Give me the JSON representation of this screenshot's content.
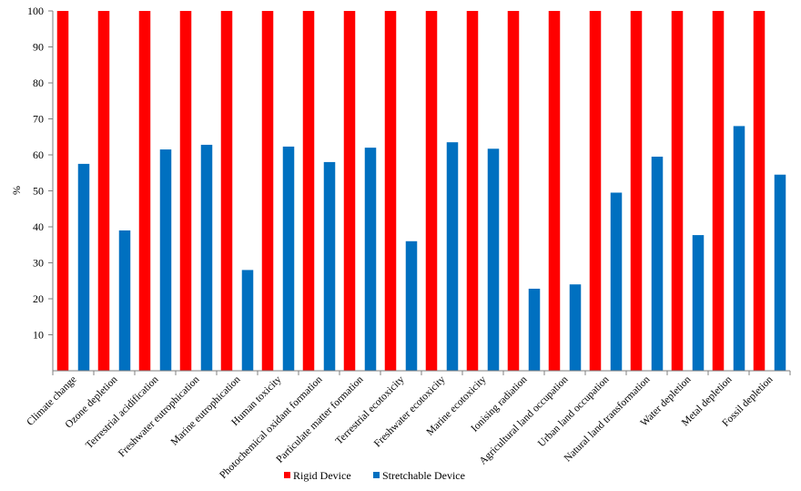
{
  "chart_data": {
    "type": "bar",
    "title": "",
    "xlabel": "",
    "ylabel": "%",
    "ylim": [
      0,
      100
    ],
    "yticks": [
      10,
      20,
      30,
      40,
      50,
      60,
      70,
      80,
      90,
      100
    ],
    "grid": false,
    "legend_position": "bottom",
    "categories": [
      "Climate change",
      "Ozone depletion",
      "Terrestrial acidification",
      "Freshwater eutrophication",
      "Marine eutrophication",
      "Human toxicity",
      "Photochemical oxidant formation",
      "Particulate matter formation",
      "Terrestrial ecotoxicity",
      "Freshwater ecotoxicity",
      "Marine ecotoxicity",
      "Ionising radiation",
      "Agricultural land occupation",
      "Urban land occupation",
      "Natural land transformation",
      "Water depletion",
      "Metal depletion",
      "Fossil depletion"
    ],
    "series": [
      {
        "name": "Rigid Device",
        "color": "#ff0000",
        "values": [
          100,
          100,
          100,
          100,
          100,
          100,
          100,
          100,
          100,
          100,
          100,
          100,
          100,
          100,
          100,
          100,
          100,
          100
        ]
      },
      {
        "name": "Stretchable Device",
        "color": "#0070c0",
        "values": [
          57.5,
          39,
          61.5,
          62.8,
          28,
          62.3,
          58,
          62,
          36,
          63.5,
          61.7,
          22.8,
          24,
          49.5,
          59.5,
          37.7,
          68,
          54.5
        ]
      }
    ]
  }
}
